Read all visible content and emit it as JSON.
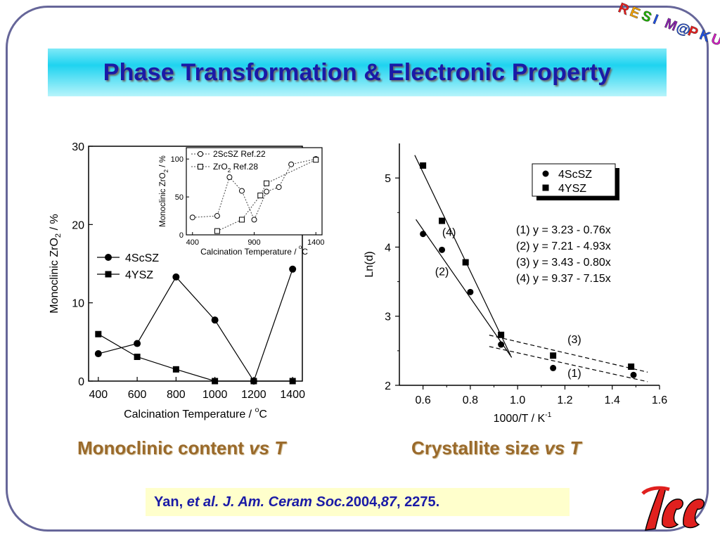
{
  "slide": {
    "title": "Phase Transformation & Electronic Property",
    "logo_letters": [
      "R",
      "E",
      "S",
      "I",
      "M",
      "@",
      "P",
      "K",
      "U"
    ],
    "logo_colors": [
      "#e61e1e",
      "#f5a300",
      "#1fb000",
      "#1f4fe0",
      "#8a1fb0",
      "#1f4fe0",
      "#e61e1e",
      "#1f4fe0",
      "#d01ec0"
    ],
    "caption_left": {
      "text": "Monoclinic content ",
      "italic": "vs T"
    },
    "caption_right": {
      "text": "Crystallite size ",
      "italic": "vs T"
    },
    "reference": {
      "author": "Yan, ",
      "etal": "et al. J. Am. Ceram Soc.",
      "year": " 2004, ",
      "volume": "87",
      "pages": ", 2275."
    },
    "accent_color": "#1a1aa6",
    "caption_color": "#9a6a2b",
    "pku_logo_color": "#e0201e"
  },
  "chart_data": [
    {
      "type": "line",
      "xlabel": "Calcination Temperature / °C",
      "ylabel": "Monoclinic ZrO2 / %",
      "xlim": [
        350,
        1450
      ],
      "ylim": [
        0,
        30
      ],
      "xticks": [
        400,
        600,
        800,
        1000,
        1200,
        1400
      ],
      "yticks": [
        0,
        10,
        20,
        30
      ],
      "legend_position": "middle-left",
      "series": [
        {
          "name": "4ScSZ",
          "marker": "circle",
          "x": [
            400,
            600,
            800,
            1000,
            1200,
            1400
          ],
          "values": [
            3.5,
            4.8,
            13.3,
            7.8,
            0,
            14.3
          ]
        },
        {
          "name": "4YSZ",
          "marker": "square",
          "x": [
            400,
            600,
            800,
            1000,
            1200,
            1400
          ],
          "values": [
            6.0,
            3.1,
            1.5,
            0,
            0,
            0
          ]
        }
      ]
    },
    {
      "type": "line",
      "inset": true,
      "xlabel": "Calcination Temperature / °C",
      "ylabel": "Monoclinic ZrO2 / %",
      "xlim": [
        350,
        1450
      ],
      "ylim": [
        0,
        115
      ],
      "xticks": [
        400,
        900,
        1400
      ],
      "yticks": [
        0,
        50,
        100
      ],
      "legend_position": "top-left",
      "series": [
        {
          "name": "2ScSZ Ref.22",
          "marker": "open-circle",
          "style": "dotted",
          "x": [
            400,
            600,
            700,
            800,
            900,
            1000,
            1100,
            1200,
            1400
          ],
          "values": [
            23,
            25,
            76,
            58,
            20,
            57,
            63,
            93,
            100
          ]
        },
        {
          "name": "ZrO2 Ref.28",
          "marker": "open-square",
          "style": "dotted",
          "x": [
            600,
            800,
            950,
            1000,
            1400
          ],
          "values": [
            5,
            20,
            52,
            68,
            99
          ]
        }
      ]
    },
    {
      "type": "scatter",
      "xlabel": "1000/T / K-1",
      "ylabel": "Ln(d)",
      "xlim": [
        0.5,
        1.6
      ],
      "ylim": [
        2.0,
        5.5
      ],
      "xticks": [
        0.6,
        0.8,
        1.0,
        1.2,
        1.4,
        1.6
      ],
      "yticks": [
        2,
        3,
        4,
        5
      ],
      "legend_position": "top-right",
      "series": [
        {
          "name": "4ScSZ",
          "marker": "circle",
          "x": [
            0.6,
            0.68,
            0.8,
            0.93,
            1.15,
            1.49
          ],
          "values": [
            4.19,
            3.96,
            3.35,
            2.59,
            2.25,
            2.15
          ]
        },
        {
          "name": "4YSZ",
          "marker": "square",
          "x": [
            0.6,
            0.68,
            0.78,
            0.93,
            1.15,
            1.48
          ],
          "values": [
            5.18,
            4.38,
            3.78,
            2.73,
            2.43,
            2.27
          ]
        }
      ],
      "fits": [
        {
          "label": "(1)",
          "equation": "(1) y = 3.23 - 0.76x",
          "intercept": 3.23,
          "slope": -0.76,
          "style": "dashed",
          "x_range": [
            0.88,
            1.55
          ]
        },
        {
          "label": "(2)",
          "equation": "(2) y = 7.21 - 4.93x",
          "intercept": 7.21,
          "slope": -4.93,
          "style": "solid",
          "x_range": [
            0.57,
            0.975
          ]
        },
        {
          "label": "(3)",
          "equation": "(3) y = 3.43 - 0.80x",
          "intercept": 3.43,
          "slope": -0.8,
          "style": "dashed",
          "x_range": [
            0.88,
            1.55
          ]
        },
        {
          "label": "(4)",
          "equation": "(4) y = 9.37 - 7.15x",
          "intercept": 9.37,
          "slope": -7.15,
          "style": "solid",
          "x_range": [
            0.565,
            0.97
          ]
        }
      ]
    }
  ]
}
